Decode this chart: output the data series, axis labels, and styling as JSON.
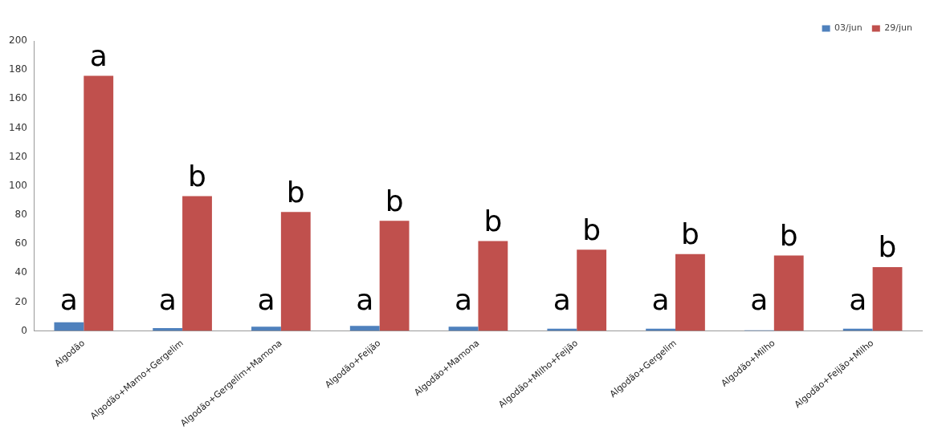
{
  "chart_data": {
    "type": "bar",
    "categories": [
      "Algodão",
      "Algodão+Mamo+Gergelim",
      "Algodão+Gergelim+Mamona",
      "Algodão+Feijão",
      "Algodão+Mamona",
      "Algodão+Milho+Feijão",
      "Algodão+Gergelim",
      "Algodão+Milho",
      "Algodão+Feijão+Milho"
    ],
    "series": [
      {
        "name": "03/jun",
        "color": "#4f81bd",
        "values": [
          6,
          2,
          3,
          3.5,
          3,
          1.5,
          1.5,
          0.5,
          1.5
        ],
        "value_labels": [
          "a",
          "a",
          "a",
          "a",
          "a",
          "a",
          "a",
          "a",
          "a"
        ]
      },
      {
        "name": "29/jun",
        "color": "#c0504d",
        "values": [
          176,
          93,
          82,
          76,
          62,
          56,
          53,
          52,
          44
        ],
        "value_labels": [
          "a",
          "b",
          "b",
          "b",
          "b",
          "b",
          "b",
          "b",
          "b"
        ]
      }
    ],
    "ylim": [
      0,
      200
    ],
    "yticks": [
      0,
      20,
      40,
      60,
      80,
      100,
      120,
      140,
      160,
      180,
      200
    ],
    "grid": false,
    "legend": "top right"
  }
}
